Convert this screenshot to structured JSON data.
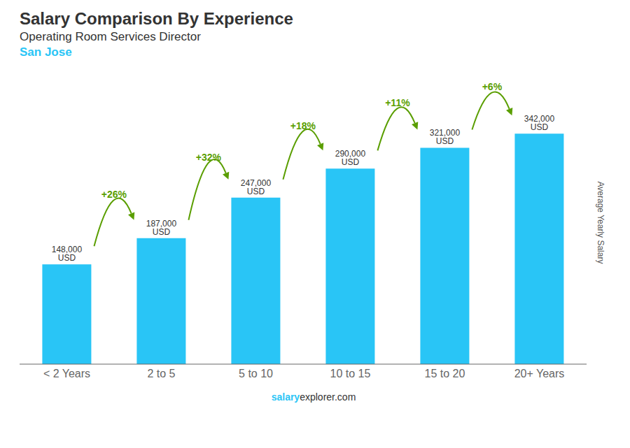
{
  "chart_data": {
    "type": "bar",
    "title": "Salary Comparison By Experience",
    "subtitle": [
      "Operating Room Services Director",
      "San Jose"
    ],
    "categories": [
      "< 2 Years",
      "2 to 5",
      "5 to 10",
      "10 to 15",
      "15 to 20",
      "20+ Years"
    ],
    "values": [
      148000,
      187000,
      247000,
      290000,
      321000,
      342000
    ],
    "value_labels": [
      "148,000 USD",
      "187,000 USD",
      "247,000 USD",
      "290,000 USD",
      "321,000 USD",
      "342,000 USD"
    ],
    "data_labels": true,
    "annotations": [
      "+26%",
      "+32%",
      "+18%",
      "+11%",
      "+6%"
    ],
    "ylabel": "Average Yearly Salary",
    "source": [
      "salary",
      "explorer.com"
    ],
    "color": "#29C5F6",
    "ylim": [
      0,
      420000
    ],
    "grid": false,
    "tick_labels": "x"
  }
}
